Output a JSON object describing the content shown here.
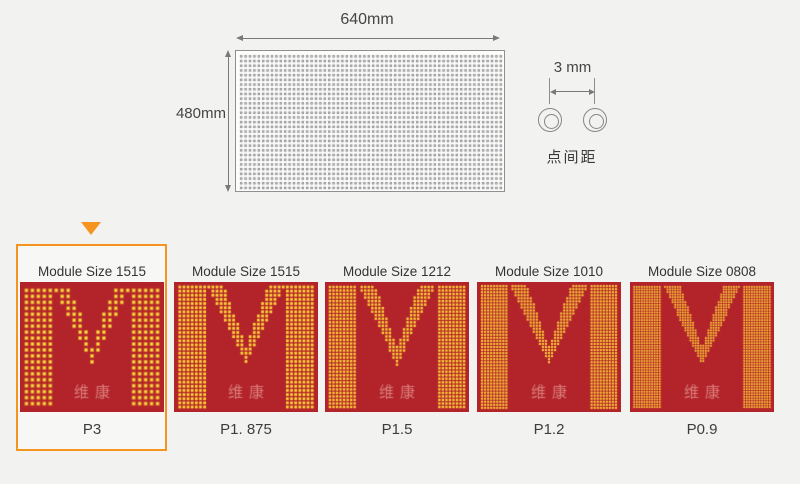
{
  "panel_diagram": {
    "width_label": "640mm",
    "height_label": "480mm",
    "pitch_illustration": {
      "distance_label": "3 mm",
      "caption": "点间距"
    }
  },
  "module_gallery": {
    "selected_index": 0,
    "items": [
      {
        "title": "Module Size 1515",
        "pitch_label": "P3",
        "watermark": "维康"
      },
      {
        "title": "Module Size 1515",
        "pitch_label": "P1. 875",
        "watermark": "维康"
      },
      {
        "title": "Module Size 1212",
        "pitch_label": "P1.5",
        "watermark": "维康"
      },
      {
        "title": "Module Size 1010",
        "pitch_label": "P1.2",
        "watermark": "维康"
      },
      {
        "title": "Module Size 0808",
        "pitch_label": "P0.9",
        "watermark": "维康"
      }
    ]
  },
  "colors": {
    "background": "#f2f2f1",
    "accent_orange": "#f5941e",
    "module_red": "#b3232a",
    "led_core": "#ffef4a",
    "led_edge": "#dd872e",
    "led_small": "#fed73a",
    "watermark": "rgba(244,186,178,0.6)",
    "panel_dot": "#7e7e82"
  }
}
